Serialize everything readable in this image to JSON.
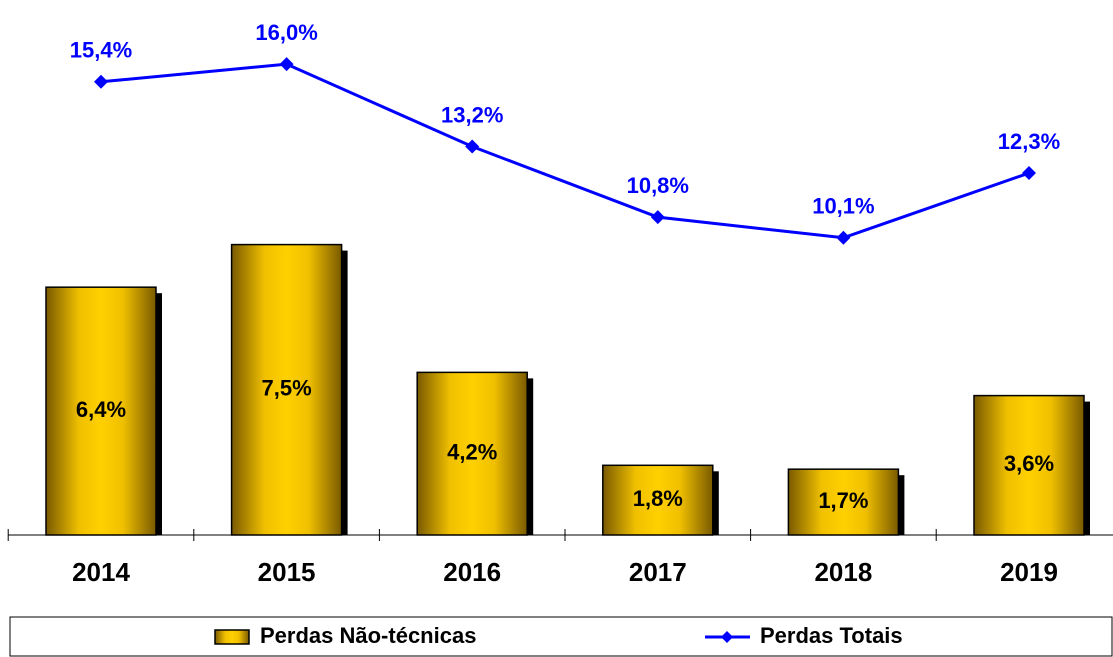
{
  "chart_data": {
    "type": "bar",
    "categories": [
      "2014",
      "2015",
      "2016",
      "2017",
      "2018",
      "2019"
    ],
    "series": [
      {
        "name": "Perdas Não-técnicas",
        "type": "bar",
        "color": "#ffcc00",
        "axis": "y",
        "values": [
          6.4,
          7.5,
          4.2,
          1.8,
          1.7,
          3.6
        ],
        "value_labels": [
          "6,4%",
          "7,5%",
          "4,2%",
          "1,8%",
          "1,7%",
          "3,6%"
        ]
      },
      {
        "name": "Perdas Totais",
        "type": "line",
        "color": "#0000ff",
        "axis": "y2",
        "values": [
          15.4,
          16.0,
          13.2,
          10.8,
          10.1,
          12.3
        ],
        "value_labels": [
          "15,4%",
          "16,0%",
          "13,2%",
          "10,8%",
          "10,1%",
          "12,3%"
        ]
      }
    ],
    "ylim": [
      0,
      13.3
    ],
    "y2lim": [
      0,
      17.5
    ],
    "legend": "bottom"
  }
}
